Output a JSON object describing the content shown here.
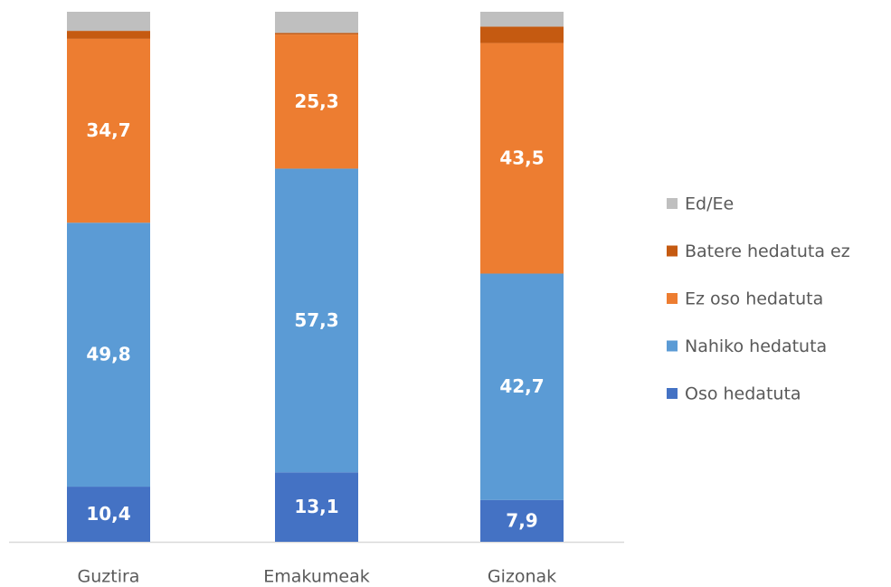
{
  "chart_data": {
    "type": "stacked_bar",
    "categories": [
      "Guztira",
      "Emakumeak",
      "Gizonak"
    ],
    "series": [
      {
        "name": "Oso hedatuta",
        "color": "#4472c4",
        "values": [
          10.4,
          13.1,
          7.9
        ],
        "value_labels": [
          "10,4",
          "13,1",
          "7,9"
        ]
      },
      {
        "name": "Nahiko hedatuta",
        "color": "#5b9bd5",
        "values": [
          49.8,
          57.3,
          42.7
        ],
        "value_labels": [
          "49,8",
          "57,3",
          "42,7"
        ]
      },
      {
        "name": "Ez oso hedatuta",
        "color": "#ed7d31",
        "values": [
          34.7,
          25.3,
          43.5
        ],
        "value_labels": [
          "34,7",
          "25,3",
          "43,5"
        ]
      },
      {
        "name": "Batere hedatuta ez",
        "color": "#c55a11",
        "values": [
          1.5,
          0.3,
          3.1
        ]
      },
      {
        "name": "Ed/Ee",
        "color": "#bfbfbf",
        "values": [
          3.6,
          4.0,
          2.8
        ]
      }
    ],
    "ylim": [
      0,
      100
    ],
    "legend": "right"
  }
}
